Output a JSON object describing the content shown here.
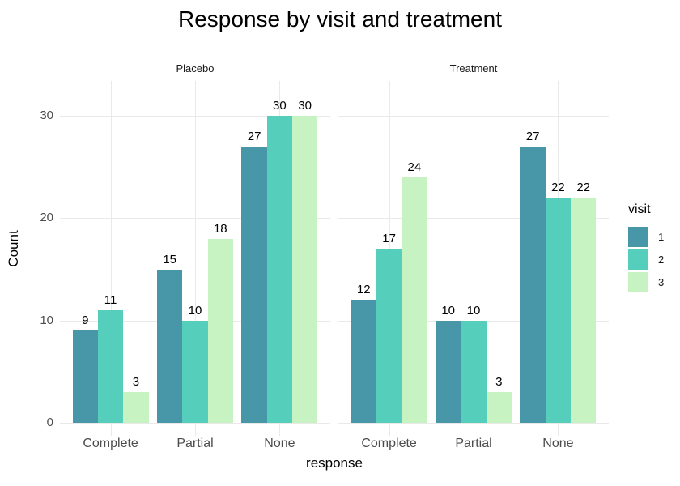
{
  "chart_data": {
    "type": "bar",
    "title": "Response by visit and treatment",
    "xlabel": "response",
    "ylabel": "Count",
    "ylim": [
      0,
      33
    ],
    "yticks": [
      0,
      10,
      20,
      30
    ],
    "categories": [
      "Complete",
      "Partial",
      "None"
    ],
    "legend_title": "visit",
    "legend_position": "right",
    "grid": true,
    "value_labels": true,
    "series": [
      {
        "name": "1",
        "color": "#4797a9"
      },
      {
        "name": "2",
        "color": "#55cebc"
      },
      {
        "name": "3",
        "color": "#c7f2c2"
      }
    ],
    "facets": [
      {
        "label": "Placebo",
        "values_by_category": [
          [
            9,
            11,
            3
          ],
          [
            15,
            10,
            18
          ],
          [
            27,
            30,
            30
          ]
        ]
      },
      {
        "label": "Treatment",
        "values_by_category": [
          [
            12,
            17,
            24
          ],
          [
            10,
            10,
            3
          ],
          [
            27,
            22,
            22
          ]
        ]
      }
    ]
  },
  "colors": {
    "background": "#ffffff",
    "grid": "#e9e9e9",
    "tick_label": "#4d4d4d",
    "text": "#000000"
  }
}
